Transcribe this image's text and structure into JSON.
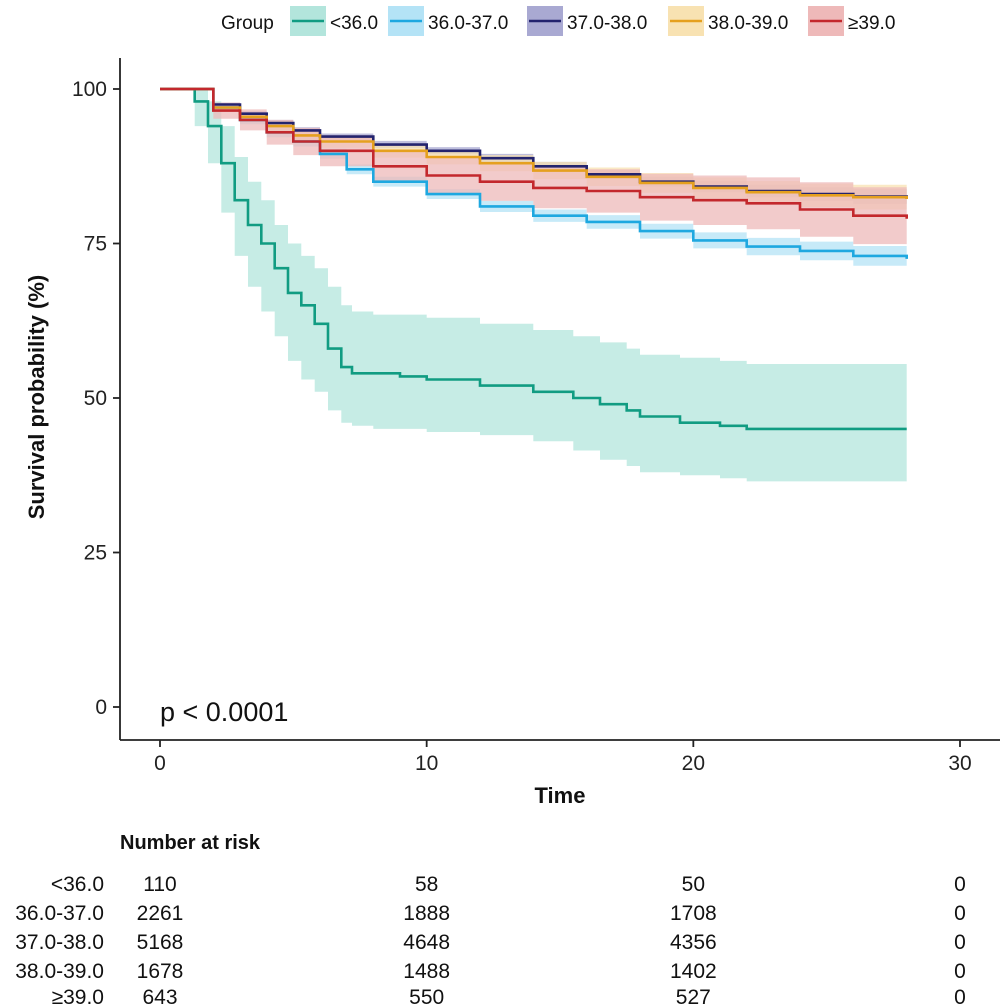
{
  "chart_data": {
    "type": "line",
    "subtype": "kaplan-meier",
    "xlabel": "Time",
    "ylabel": "Survival probability (%)",
    "xlim": [
      0,
      30
    ],
    "ylim": [
      0,
      100
    ],
    "xticks": [
      0,
      10,
      20,
      30
    ],
    "yticks": [
      0,
      25,
      50,
      75,
      100
    ],
    "pvalue_text": "p < 0.0001",
    "legend": {
      "title": "Group",
      "position": "top"
    },
    "series": [
      {
        "name": "<36.0",
        "color": "#119c82",
        "fill": "#b3e5dc",
        "points": [
          [
            0,
            100
          ],
          [
            1,
            100
          ],
          [
            1.3,
            98
          ],
          [
            1.8,
            94
          ],
          [
            2.3,
            88
          ],
          [
            2.8,
            82
          ],
          [
            3.3,
            78
          ],
          [
            3.8,
            75
          ],
          [
            4.3,
            71
          ],
          [
            4.8,
            67
          ],
          [
            5.3,
            65
          ],
          [
            5.8,
            62
          ],
          [
            6.3,
            58
          ],
          [
            6.8,
            55
          ],
          [
            7.2,
            54
          ],
          [
            8,
            54
          ],
          [
            9,
            53.5
          ],
          [
            10,
            53
          ],
          [
            12,
            52
          ],
          [
            14,
            51
          ],
          [
            15.5,
            50
          ],
          [
            16.5,
            49
          ],
          [
            17.5,
            48
          ],
          [
            18,
            47
          ],
          [
            19.5,
            46
          ],
          [
            21,
            45.5
          ],
          [
            22,
            45
          ],
          [
            25,
            45
          ],
          [
            28,
            45
          ]
        ],
        "lower": [
          [
            0,
            100
          ],
          [
            1,
            100
          ],
          [
            1.3,
            94
          ],
          [
            1.8,
            88
          ],
          [
            2.3,
            80
          ],
          [
            2.8,
            73
          ],
          [
            3.3,
            68
          ],
          [
            3.8,
            64
          ],
          [
            4.3,
            60
          ],
          [
            4.8,
            56
          ],
          [
            5.3,
            53
          ],
          [
            5.8,
            51
          ],
          [
            6.3,
            48
          ],
          [
            6.8,
            46
          ],
          [
            7.2,
            45.5
          ],
          [
            8,
            45
          ],
          [
            10,
            44.5
          ],
          [
            12,
            44
          ],
          [
            14,
            43
          ],
          [
            15.5,
            41.5
          ],
          [
            16.5,
            40
          ],
          [
            17.5,
            39
          ],
          [
            18,
            38
          ],
          [
            19.5,
            37.5
          ],
          [
            21,
            37
          ],
          [
            22,
            36.5
          ],
          [
            28,
            36.5
          ]
        ],
        "upper": [
          [
            0,
            100
          ],
          [
            1,
            100
          ],
          [
            1.3,
            100
          ],
          [
            1.8,
            98
          ],
          [
            2.3,
            94
          ],
          [
            2.8,
            89
          ],
          [
            3.3,
            85
          ],
          [
            3.8,
            82
          ],
          [
            4.3,
            78
          ],
          [
            4.8,
            75
          ],
          [
            5.3,
            73
          ],
          [
            5.8,
            71
          ],
          [
            6.3,
            68
          ],
          [
            6.8,
            65
          ],
          [
            7.2,
            64
          ],
          [
            8,
            63.5
          ],
          [
            10,
            63
          ],
          [
            12,
            62
          ],
          [
            14,
            61
          ],
          [
            15.5,
            60
          ],
          [
            16.5,
            59
          ],
          [
            17.5,
            58
          ],
          [
            18,
            57
          ],
          [
            19.5,
            56.5
          ],
          [
            21,
            56
          ],
          [
            22,
            55.5
          ],
          [
            28,
            55.5
          ]
        ]
      },
      {
        "name": "36.0-37.0",
        "color": "#1ea8e0",
        "fill": "#b4e3f6",
        "points": [
          [
            0,
            100
          ],
          [
            1,
            100
          ],
          [
            2,
            97
          ],
          [
            3,
            95
          ],
          [
            4,
            93
          ],
          [
            5,
            91.5
          ],
          [
            6,
            89.5
          ],
          [
            7,
            87
          ],
          [
            8,
            85
          ],
          [
            10,
            83
          ],
          [
            12,
            81
          ],
          [
            14,
            79.5
          ],
          [
            16,
            78.5
          ],
          [
            18,
            77
          ],
          [
            20,
            75.5
          ],
          [
            22,
            74.5
          ],
          [
            24,
            73.8
          ],
          [
            26,
            73
          ],
          [
            28,
            72.5
          ]
        ],
        "lower": [
          [
            0,
            100
          ],
          [
            1,
            100
          ],
          [
            2,
            96.5
          ],
          [
            3,
            94.3
          ],
          [
            4,
            92.2
          ],
          [
            5,
            90.7
          ],
          [
            6,
            88.7
          ],
          [
            7,
            86.2
          ],
          [
            8,
            84.2
          ],
          [
            10,
            82.2
          ],
          [
            12,
            80.1
          ],
          [
            14,
            78.5
          ],
          [
            16,
            77.4
          ],
          [
            18,
            75.8
          ],
          [
            20,
            74.2
          ],
          [
            22,
            73.1
          ],
          [
            24,
            72.3
          ],
          [
            26,
            71.4
          ],
          [
            28,
            70.8
          ]
        ],
        "upper": [
          [
            0,
            100
          ],
          [
            1,
            100
          ],
          [
            2,
            97.5
          ],
          [
            3,
            95.7
          ],
          [
            4,
            93.8
          ],
          [
            5,
            92.3
          ],
          [
            6,
            90.3
          ],
          [
            7,
            87.8
          ],
          [
            8,
            85.8
          ],
          [
            10,
            83.8
          ],
          [
            12,
            81.9
          ],
          [
            14,
            80.5
          ],
          [
            16,
            79.6
          ],
          [
            18,
            78.2
          ],
          [
            20,
            76.8
          ],
          [
            22,
            75.9
          ],
          [
            24,
            75.3
          ],
          [
            26,
            74.6
          ],
          [
            28,
            74.2
          ]
        ]
      },
      {
        "name": "37.0-38.0",
        "color": "#23236e",
        "fill": "#a9a9d2",
        "points": [
          [
            0,
            100
          ],
          [
            1,
            100
          ],
          [
            2,
            97.5
          ],
          [
            3,
            96
          ],
          [
            4,
            94.5
          ],
          [
            5,
            93.3
          ],
          [
            6,
            92.3
          ],
          [
            8,
            91
          ],
          [
            10,
            90
          ],
          [
            12,
            88.8
          ],
          [
            14,
            87.5
          ],
          [
            16,
            86.2
          ],
          [
            18,
            85
          ],
          [
            20,
            84.2
          ],
          [
            22,
            83.5
          ],
          [
            24,
            83
          ],
          [
            26,
            82.6
          ],
          [
            28,
            82.2
          ]
        ],
        "lower": [
          [
            0,
            100
          ],
          [
            1,
            100
          ],
          [
            2,
            97.2
          ],
          [
            3,
            95.6
          ],
          [
            4,
            94
          ],
          [
            5,
            92.8
          ],
          [
            6,
            91.8
          ],
          [
            8,
            90.4
          ],
          [
            10,
            89.4
          ],
          [
            12,
            88.1
          ],
          [
            14,
            86.8
          ],
          [
            16,
            85.5
          ],
          [
            18,
            84.2
          ],
          [
            20,
            83.3
          ],
          [
            22,
            82.5
          ],
          [
            24,
            81.9
          ],
          [
            26,
            81.4
          ],
          [
            28,
            80.9
          ]
        ],
        "upper": [
          [
            0,
            100
          ],
          [
            1,
            100
          ],
          [
            2,
            97.8
          ],
          [
            3,
            96.4
          ],
          [
            4,
            95
          ],
          [
            5,
            93.8
          ],
          [
            6,
            92.8
          ],
          [
            8,
            91.6
          ],
          [
            10,
            90.6
          ],
          [
            12,
            89.5
          ],
          [
            14,
            88.2
          ],
          [
            16,
            86.9
          ],
          [
            18,
            85.8
          ],
          [
            20,
            85.1
          ],
          [
            22,
            84.5
          ],
          [
            24,
            84.1
          ],
          [
            26,
            83.8
          ],
          [
            28,
            83.5
          ]
        ]
      },
      {
        "name": "38.0-39.0",
        "color": "#e5a01e",
        "fill": "#f8e2b2",
        "points": [
          [
            0,
            100
          ],
          [
            1,
            100
          ],
          [
            2,
            97
          ],
          [
            3,
            95.5
          ],
          [
            4,
            94
          ],
          [
            5,
            92.5
          ],
          [
            6,
            91.5
          ],
          [
            8,
            90
          ],
          [
            10,
            89
          ],
          [
            12,
            88
          ],
          [
            14,
            86.8
          ],
          [
            16,
            85.8
          ],
          [
            18,
            84.8
          ],
          [
            20,
            84
          ],
          [
            22,
            83.3
          ],
          [
            24,
            82.8
          ],
          [
            26,
            82.5
          ],
          [
            28,
            82.2
          ]
        ],
        "lower": [
          [
            0,
            100
          ],
          [
            1,
            100
          ],
          [
            2,
            96.5
          ],
          [
            3,
            94.8
          ],
          [
            4,
            93.2
          ],
          [
            5,
            91.6
          ],
          [
            6,
            90.5
          ],
          [
            8,
            88.9
          ],
          [
            10,
            87.8
          ],
          [
            12,
            86.7
          ],
          [
            14,
            85.4
          ],
          [
            16,
            84.3
          ],
          [
            18,
            83.2
          ],
          [
            20,
            82.3
          ],
          [
            22,
            81.5
          ],
          [
            24,
            80.9
          ],
          [
            26,
            80.5
          ],
          [
            28,
            80.1
          ]
        ],
        "upper": [
          [
            0,
            100
          ],
          [
            1,
            100
          ],
          [
            2,
            97.5
          ],
          [
            3,
            96.2
          ],
          [
            4,
            94.8
          ],
          [
            5,
            93.4
          ],
          [
            6,
            92.5
          ],
          [
            8,
            91.1
          ],
          [
            10,
            90.2
          ],
          [
            12,
            89.3
          ],
          [
            14,
            88.2
          ],
          [
            16,
            87.3
          ],
          [
            18,
            86.4
          ],
          [
            20,
            85.7
          ],
          [
            22,
            85.1
          ],
          [
            24,
            84.7
          ],
          [
            26,
            84.5
          ],
          [
            28,
            84.3
          ]
        ]
      },
      {
        "name": "≥39.0",
        "color": "#c3282d",
        "fill": "#eeb9b9",
        "points": [
          [
            0,
            100
          ],
          [
            1,
            100
          ],
          [
            2,
            96.5
          ],
          [
            3,
            95
          ],
          [
            4,
            93
          ],
          [
            5,
            91.5
          ],
          [
            6,
            90
          ],
          [
            8,
            87.5
          ],
          [
            10,
            86
          ],
          [
            12,
            85
          ],
          [
            14,
            84
          ],
          [
            16,
            83.5
          ],
          [
            18,
            82.5
          ],
          [
            20,
            82
          ],
          [
            22,
            81.5
          ],
          [
            24,
            80.5
          ],
          [
            26,
            79.5
          ],
          [
            28,
            79
          ]
        ],
        "lower": [
          [
            0,
            100
          ],
          [
            1,
            100
          ],
          [
            2,
            95.2
          ],
          [
            3,
            93.3
          ],
          [
            4,
            91
          ],
          [
            5,
            89.3
          ],
          [
            6,
            87.5
          ],
          [
            8,
            84.8
          ],
          [
            10,
            83.1
          ],
          [
            12,
            81.9
          ],
          [
            14,
            80.7
          ],
          [
            16,
            80
          ],
          [
            18,
            78.7
          ],
          [
            20,
            78
          ],
          [
            22,
            77.3
          ],
          [
            24,
            76.1
          ],
          [
            26,
            74.9
          ],
          [
            28,
            74.2
          ]
        ],
        "upper": [
          [
            0,
            100
          ],
          [
            1,
            100
          ],
          [
            2,
            97.8
          ],
          [
            3,
            96.7
          ],
          [
            4,
            95
          ],
          [
            5,
            93.7
          ],
          [
            6,
            92.5
          ],
          [
            8,
            90.2
          ],
          [
            10,
            88.9
          ],
          [
            12,
            88.1
          ],
          [
            14,
            87.3
          ],
          [
            16,
            87
          ],
          [
            18,
            86.3
          ],
          [
            20,
            86
          ],
          [
            22,
            85.7
          ],
          [
            24,
            84.9
          ],
          [
            26,
            84.1
          ],
          [
            28,
            83.8
          ]
        ]
      }
    ],
    "risk_table": {
      "title": "Number at risk",
      "times": [
        0,
        10,
        20,
        30
      ],
      "rows": [
        {
          "label": "<36.0",
          "counts": [
            110,
            58,
            50,
            0
          ]
        },
        {
          "label": "36.0-37.0",
          "counts": [
            2261,
            1888,
            1708,
            0
          ]
        },
        {
          "label": "37.0-38.0",
          "counts": [
            5168,
            4648,
            4356,
            0
          ]
        },
        {
          "label": "38.0-39.0",
          "counts": [
            1678,
            1488,
            1402,
            0
          ]
        },
        {
          "label": "≥39.0",
          "counts": [
            643,
            550,
            527,
            0
          ]
        }
      ]
    }
  }
}
